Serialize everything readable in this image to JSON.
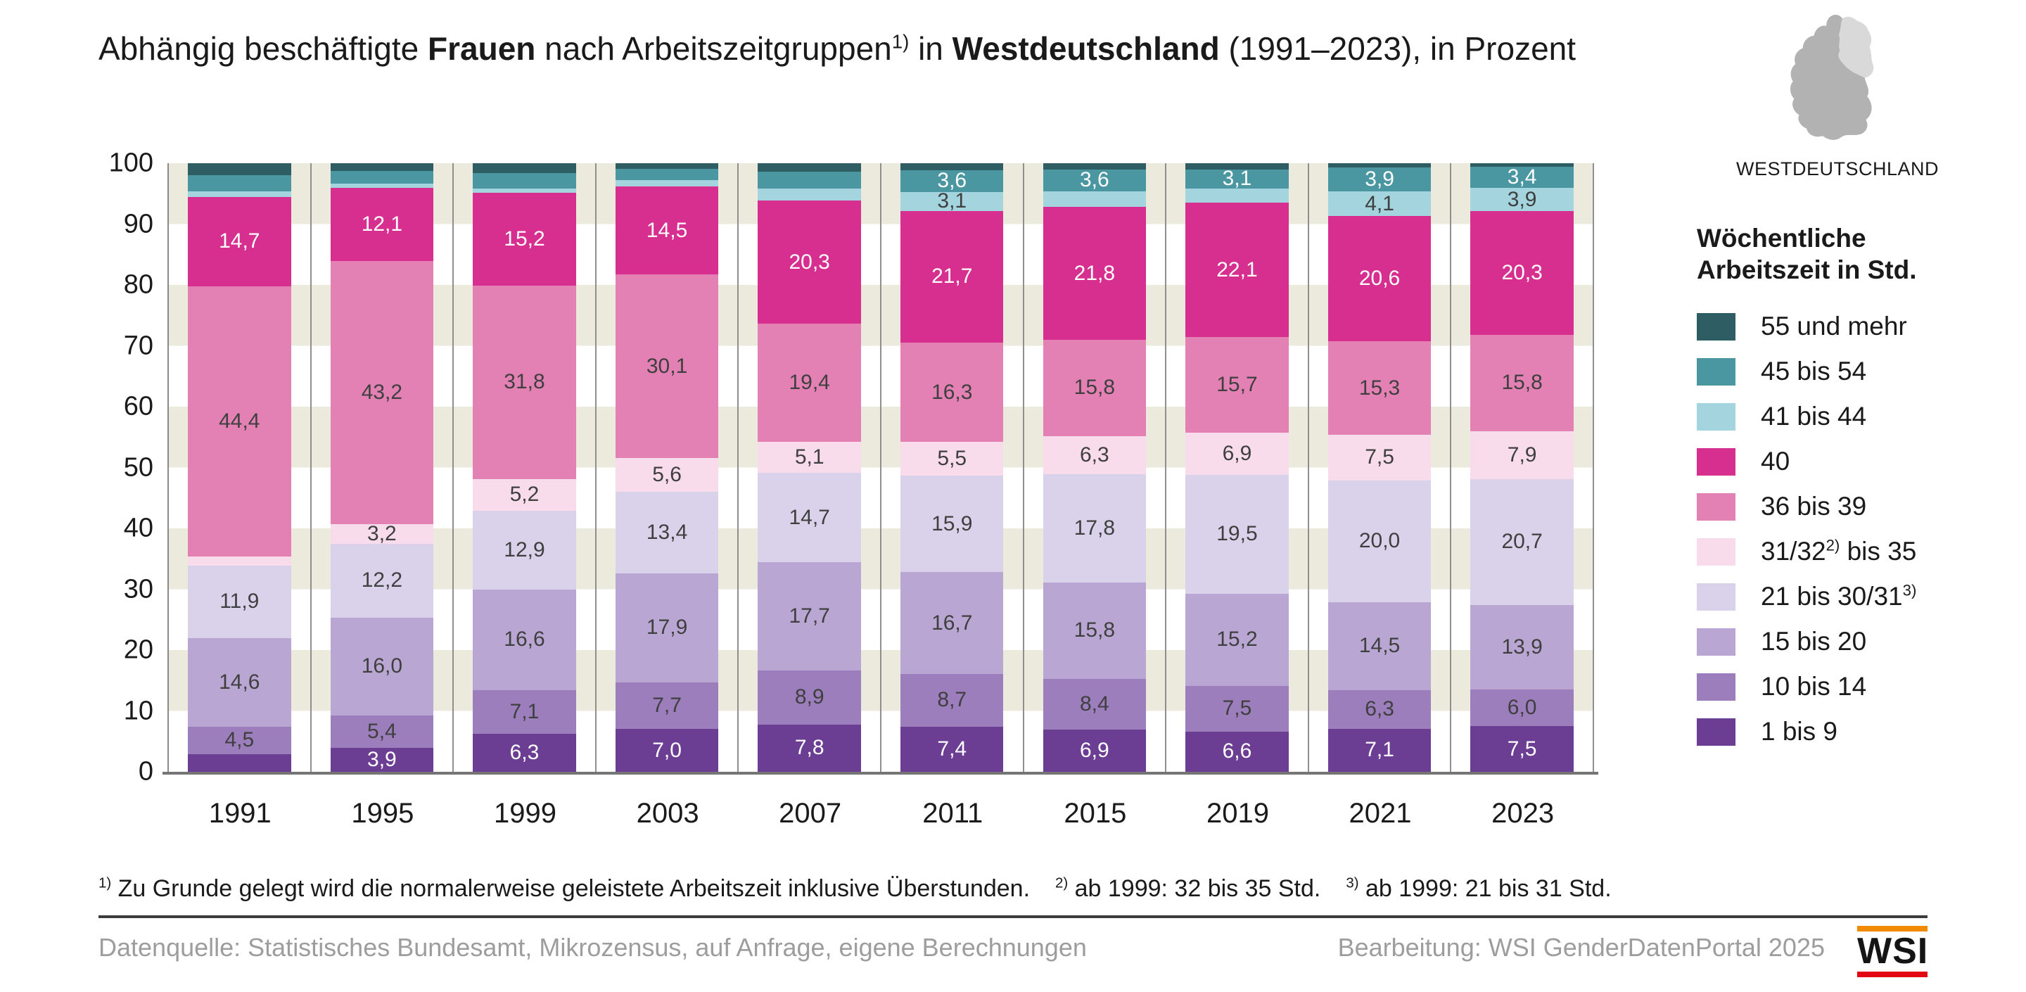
{
  "title": {
    "pre": "Abhängig beschäftigte ",
    "bold1": "Frauen",
    "mid": " nach Arbeitszeitgruppen",
    "sup1": "1)",
    "mid2": " in ",
    "bold2": "Westdeutschland",
    "post": " (1991–2023), in Prozent"
  },
  "map": {
    "caption": "WESTDEUTSCHLAND",
    "west_color": "#b2b2b2",
    "east_color": "#d9d9d9"
  },
  "axis": {
    "ticks": [
      "100",
      "90",
      "80",
      "70",
      "60",
      "50",
      "40",
      "30",
      "20",
      "10",
      "0"
    ]
  },
  "legend": {
    "title_line1": "Wöchentliche",
    "title_line2": "Arbeitszeit in Std.",
    "items": [
      {
        "color": "#2e5d64",
        "parts": [
          {
            "t": "55 und mehr"
          }
        ]
      },
      {
        "color": "#4a97a2",
        "parts": [
          {
            "t": "45 bis 54"
          }
        ]
      },
      {
        "color": "#a4d5de",
        "parts": [
          {
            "t": "41 bis 44"
          }
        ]
      },
      {
        "color": "#d72f8f",
        "parts": [
          {
            "t": "40"
          }
        ]
      },
      {
        "color": "#e381b4",
        "parts": [
          {
            "t": "36 bis 39"
          }
        ]
      },
      {
        "color": "#f8dcec",
        "parts": [
          {
            "t": "31/32"
          },
          {
            "t": "2)",
            "sup": true
          },
          {
            "t": " bis 35"
          }
        ]
      },
      {
        "color": "#d9d2ea",
        "parts": [
          {
            "t": "21 bis 30/31"
          },
          {
            "t": "3)",
            "sup": true
          }
        ]
      },
      {
        "color": "#b9a6d3",
        "parts": [
          {
            "t": "15 bis 20"
          }
        ]
      },
      {
        "color": "#9c7ebc",
        "parts": [
          {
            "t": "10 bis 14"
          }
        ]
      },
      {
        "color": "#6b3e94",
        "parts": [
          {
            "t": "1 bis 9"
          }
        ]
      }
    ]
  },
  "chart_data": {
    "type": "bar",
    "subtype": "stacked-percent",
    "title": "Abhängig beschäftigte Frauen nach Arbeitszeitgruppen in Westdeutschland (1991–2023), in Prozent",
    "xlabel": "",
    "ylabel": "Prozent",
    "ylim": [
      0,
      100
    ],
    "grid": "alternating 10%-bands (beige/white)",
    "legend_position": "right",
    "categories": [
      "1991",
      "1995",
      "1999",
      "2003",
      "2007",
      "2011",
      "2015",
      "2019",
      "2021",
      "2023"
    ],
    "series": [
      {
        "name": "1 bis 9",
        "color": "#6b3e94",
        "label_color": "#ffffff",
        "values": [
          2.9,
          3.9,
          6.3,
          7.0,
          7.8,
          7.4,
          6.9,
          6.6,
          7.1,
          7.5
        ],
        "labels": [
          null,
          "3,9",
          "6,3",
          "7,0",
          "7,8",
          "7,4",
          "6,9",
          "6,6",
          "7,1",
          "7,5"
        ]
      },
      {
        "name": "10 bis 14",
        "color": "#9c7ebc",
        "label_color": "#3f3f3f",
        "values": [
          4.5,
          5.4,
          7.1,
          7.7,
          8.9,
          8.7,
          8.4,
          7.5,
          6.3,
          6.0
        ],
        "labels": [
          "4,5",
          "5,4",
          "7,1",
          "7,7",
          "8,9",
          "8,7",
          "8,4",
          "7,5",
          "6,3",
          "6,0"
        ]
      },
      {
        "name": "15 bis 20",
        "color": "#b9a6d3",
        "label_color": "#3f3f3f",
        "values": [
          14.6,
          16.0,
          16.6,
          17.9,
          17.7,
          16.7,
          15.8,
          15.2,
          14.5,
          13.9
        ],
        "labels": [
          "14,6",
          "16,0",
          "16,6",
          "17,9",
          "17,7",
          "16,7",
          "15,8",
          "15,2",
          "14,5",
          "13,9"
        ]
      },
      {
        "name": "21 bis 30/31",
        "color": "#d9d2ea",
        "label_color": "#3f3f3f",
        "values": [
          11.9,
          12.2,
          12.9,
          13.4,
          14.7,
          15.9,
          17.8,
          19.5,
          20.0,
          20.7
        ],
        "labels": [
          "11,9",
          "12,2",
          "12,9",
          "13,4",
          "14,7",
          "15,9",
          "17,8",
          "19,5",
          "20,0",
          "20,7"
        ]
      },
      {
        "name": "31/32 bis 35",
        "color": "#f8dcec",
        "label_color": "#3f3f3f",
        "values": [
          1.5,
          3.2,
          5.2,
          5.6,
          5.1,
          5.5,
          6.3,
          6.9,
          7.5,
          7.9
        ],
        "labels": [
          null,
          "3,2",
          "5,2",
          "5,6",
          "5,1",
          "5,5",
          "6,3",
          "6,9",
          "7,5",
          "7,9"
        ]
      },
      {
        "name": "36 bis 39",
        "color": "#e381b4",
        "label_color": "#3f3f3f",
        "values": [
          44.4,
          43.2,
          31.8,
          30.1,
          19.4,
          16.3,
          15.8,
          15.7,
          15.3,
          15.8
        ],
        "labels": [
          "44,4",
          "43,2",
          "31,8",
          "30,1",
          "19,4",
          "16,3",
          "15,8",
          "15,7",
          "15,3",
          "15,8"
        ]
      },
      {
        "name": "40",
        "color": "#d72f8f",
        "label_color": "#ffffff",
        "values": [
          14.7,
          12.1,
          15.2,
          14.5,
          20.3,
          21.7,
          21.8,
          22.1,
          20.6,
          20.3
        ],
        "labels": [
          "14,7",
          "12,1",
          "15,2",
          "14,5",
          "20,3",
          "21,7",
          "21,8",
          "22,1",
          "20,6",
          "20,3"
        ]
      },
      {
        "name": "41 bis 44",
        "color": "#a4d5de",
        "label_color": "#3f3f3f",
        "values": [
          0.9,
          0.7,
          0.8,
          1.0,
          2.0,
          3.1,
          2.6,
          2.4,
          4.1,
          3.9
        ],
        "labels": [
          null,
          null,
          null,
          null,
          null,
          "3,1",
          null,
          null,
          "4,1",
          "3,9"
        ]
      },
      {
        "name": "45 bis 54",
        "color": "#4a97a2",
        "label_color": "#ffffff",
        "values": [
          2.7,
          2.0,
          2.5,
          1.9,
          2.7,
          3.6,
          3.6,
          3.1,
          3.9,
          3.4
        ],
        "labels": [
          null,
          null,
          null,
          null,
          null,
          "3,6",
          "3,6",
          "3,1",
          "3,9",
          "3,4"
        ]
      },
      {
        "name": "55 und mehr",
        "color": "#2e5d64",
        "label_color": "#ffffff",
        "values": [
          1.9,
          1.3,
          1.6,
          0.9,
          1.4,
          1.1,
          1.0,
          1.0,
          0.7,
          0.6
        ],
        "labels": [
          null,
          null,
          null,
          null,
          null,
          null,
          null,
          null,
          null,
          null
        ]
      }
    ]
  },
  "footnotes": [
    {
      "sup": "1)",
      "text": " Zu Grunde gelegt wird die normalerweise geleistete Arbeitszeit inklusive Überstunden."
    },
    {
      "sup": "2)",
      "text": " ab 1999: 32 bis 35 Std."
    },
    {
      "sup": "3)",
      "text": " ab 1999: 21 bis 31 Std."
    }
  ],
  "footer": {
    "source": "Datenquelle: Statistisches Bundesamt, Mikrozensus, auf Anfrage, eigene Berechnungen",
    "editing": "Bearbeitung: WSI GenderDatenPortal 2025",
    "logo_text": "WSI"
  }
}
